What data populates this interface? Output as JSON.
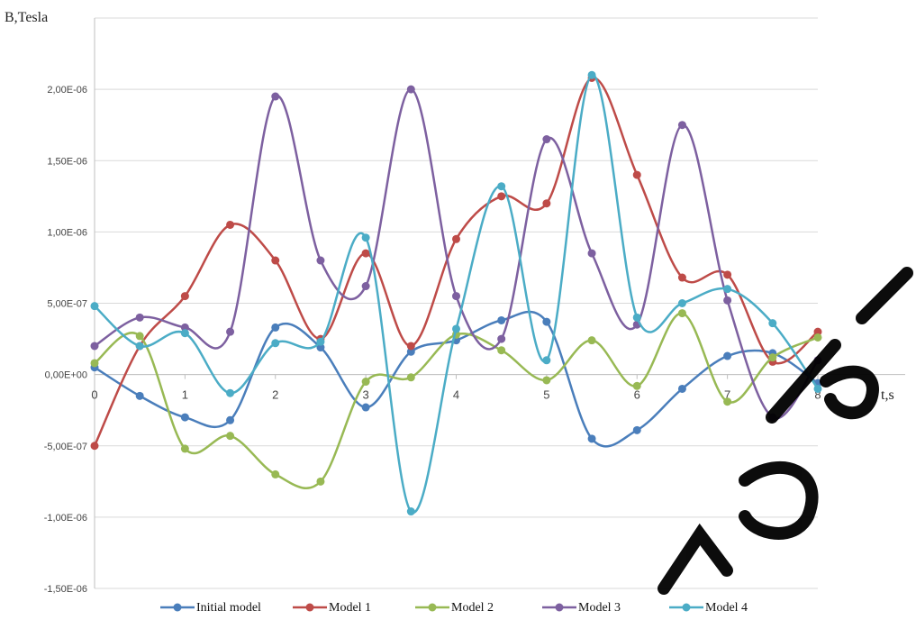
{
  "chart_data": {
    "type": "line",
    "ylabel": "B,Tesla",
    "xlabel": "t,s",
    "xlim": [
      0,
      8
    ],
    "ylim": [
      -1.5e-06,
      2.5e-06
    ],
    "x_ticks": [
      "0",
      "1",
      "2",
      "3",
      "4",
      "5",
      "6",
      "7",
      "8"
    ],
    "y_ticks": [
      {
        "value": 2e-06,
        "label": "2,00E-06"
      },
      {
        "value": 1.5e-06,
        "label": "1,50E-06"
      },
      {
        "value": 1e-06,
        "label": "1,00E-06"
      },
      {
        "value": 5e-07,
        "label": "5,00E-07"
      },
      {
        "value": 0,
        "label": "0,00E+00"
      },
      {
        "value": -5e-07,
        "label": "-5,00E-07"
      },
      {
        "value": -1e-06,
        "label": "-1,00E-06"
      },
      {
        "value": -1.5e-06,
        "label": "-1,50E-06"
      }
    ],
    "grid": "horizontal",
    "legend_position": "bottom",
    "smooth": true,
    "x": [
      0,
      0.5,
      1,
      1.5,
      2,
      2.5,
      3,
      3.5,
      4,
      4.5,
      5,
      5.5,
      6,
      6.5,
      7,
      7.5,
      8
    ],
    "series": [
      {
        "name": "Initial model",
        "color": "#4a7ebb",
        "values": [
          5e-08,
          -1.5e-07,
          -3e-07,
          -3.2e-07,
          3.3e-07,
          1.9e-07,
          -2.3e-07,
          1.6e-07,
          2.4e-07,
          3.8e-07,
          3.7e-07,
          -4.5e-07,
          -3.9e-07,
          -1e-07,
          1.3e-07,
          1.5e-07,
          -6e-08
        ]
      },
      {
        "name": "Model 1",
        "color": "#be4b48",
        "values": [
          -5e-07,
          2e-07,
          5.5e-07,
          1.05e-06,
          8e-07,
          2.5e-07,
          8.5e-07,
          2e-07,
          9.5e-07,
          1.25e-06,
          1.2e-06,
          2.08e-06,
          1.4e-06,
          6.8e-07,
          7e-07,
          9e-08,
          3e-07
        ]
      },
      {
        "name": "Model 2",
        "color": "#98b954",
        "values": [
          8e-08,
          2.7e-07,
          -5.2e-07,
          -4.3e-07,
          -7e-07,
          -7.5e-07,
          -5e-08,
          -2e-08,
          2.8e-07,
          1.7e-07,
          -4e-08,
          2.4e-07,
          -8e-08,
          4.3e-07,
          -1.9e-07,
          1.2e-07,
          2.6e-07
        ]
      },
      {
        "name": "Model 3",
        "color": "#7d60a0",
        "values": [
          2e-07,
          4e-07,
          3.3e-07,
          3e-07,
          1.95e-06,
          8e-07,
          6.2e-07,
          2e-06,
          5.5e-07,
          2.5e-07,
          1.65e-06,
          8.5e-07,
          3.5e-07,
          1.75e-06,
          5.2e-07,
          -3e-07,
          1e-07
        ]
      },
      {
        "name": "Model 4",
        "color": "#4bacc6",
        "values": [
          4.8e-07,
          2e-07,
          2.9e-07,
          -1.3e-07,
          2.2e-07,
          2.3e-07,
          9.6e-07,
          -9.6e-07,
          3.2e-07,
          1.32e-06,
          1e-07,
          2.1e-06,
          4e-07,
          5e-07,
          6e-07,
          3.6e-07,
          -1e-07
        ]
      }
    ]
  },
  "watermark": {
    "color": "#000000"
  }
}
